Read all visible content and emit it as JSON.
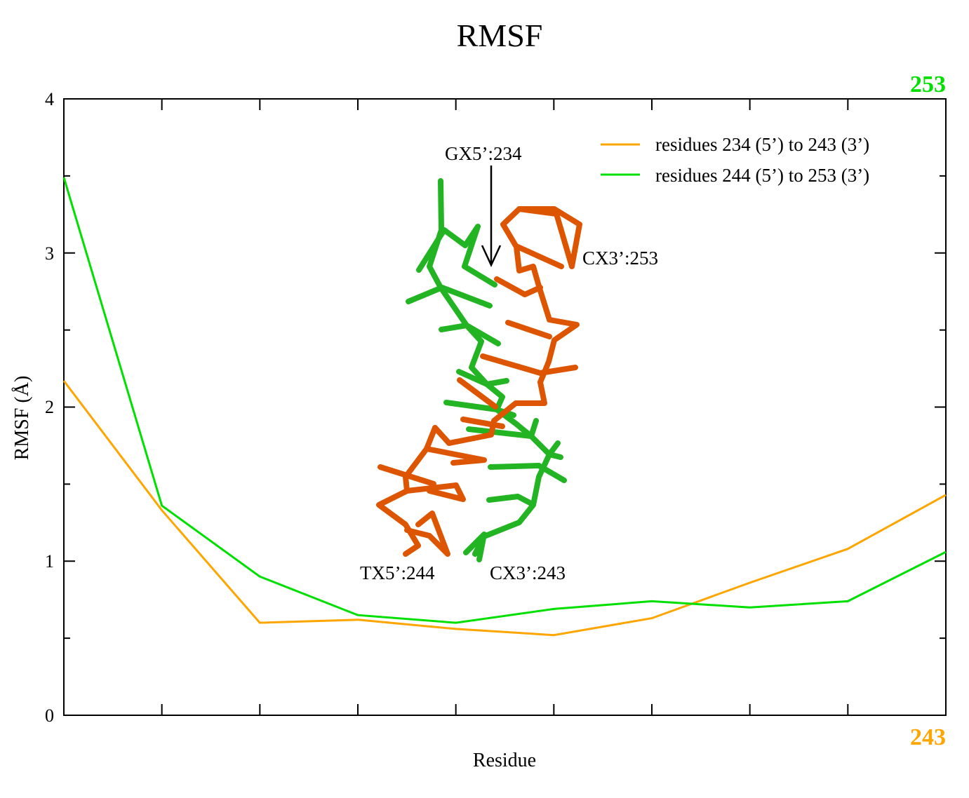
{
  "chart_data": {
    "type": "line",
    "title": "RMSF",
    "xlabel": "Residue",
    "ylabel": "RMSF (Å)",
    "x": [
      1,
      2,
      3,
      4,
      5,
      6,
      7,
      8,
      9,
      10
    ],
    "xlim": [
      1,
      10
    ],
    "ylim": [
      0,
      4
    ],
    "yticks": [
      "0",
      "1",
      "2",
      "3",
      "4"
    ],
    "series": [
      {
        "name": "residues 234 (5’) to 243 (3’)",
        "color": "#ffa500",
        "values": [
          2.17,
          1.33,
          0.6,
          0.62,
          0.56,
          0.52,
          0.63,
          0.86,
          1.08,
          1.43
        ]
      },
      {
        "name": "residues 244 (5’) to 253 (3’)",
        "color": "#00e000",
        "values": [
          3.49,
          1.36,
          0.9,
          0.65,
          0.6,
          0.69,
          0.74,
          0.7,
          0.74,
          1.06
        ]
      }
    ],
    "legend_position": "top-right",
    "corner_labels": {
      "top_right": {
        "text": "253",
        "color": "#00e000"
      },
      "bottom_right": {
        "text": "243",
        "color": "#ffa500"
      }
    },
    "annotations": [
      "GX5’:234",
      "CX3’:253",
      "TX5’:244",
      "CX3’:243"
    ]
  },
  "inset": {
    "strand_a_color": "#dd5500",
    "strand_b_color": "#22b422"
  }
}
